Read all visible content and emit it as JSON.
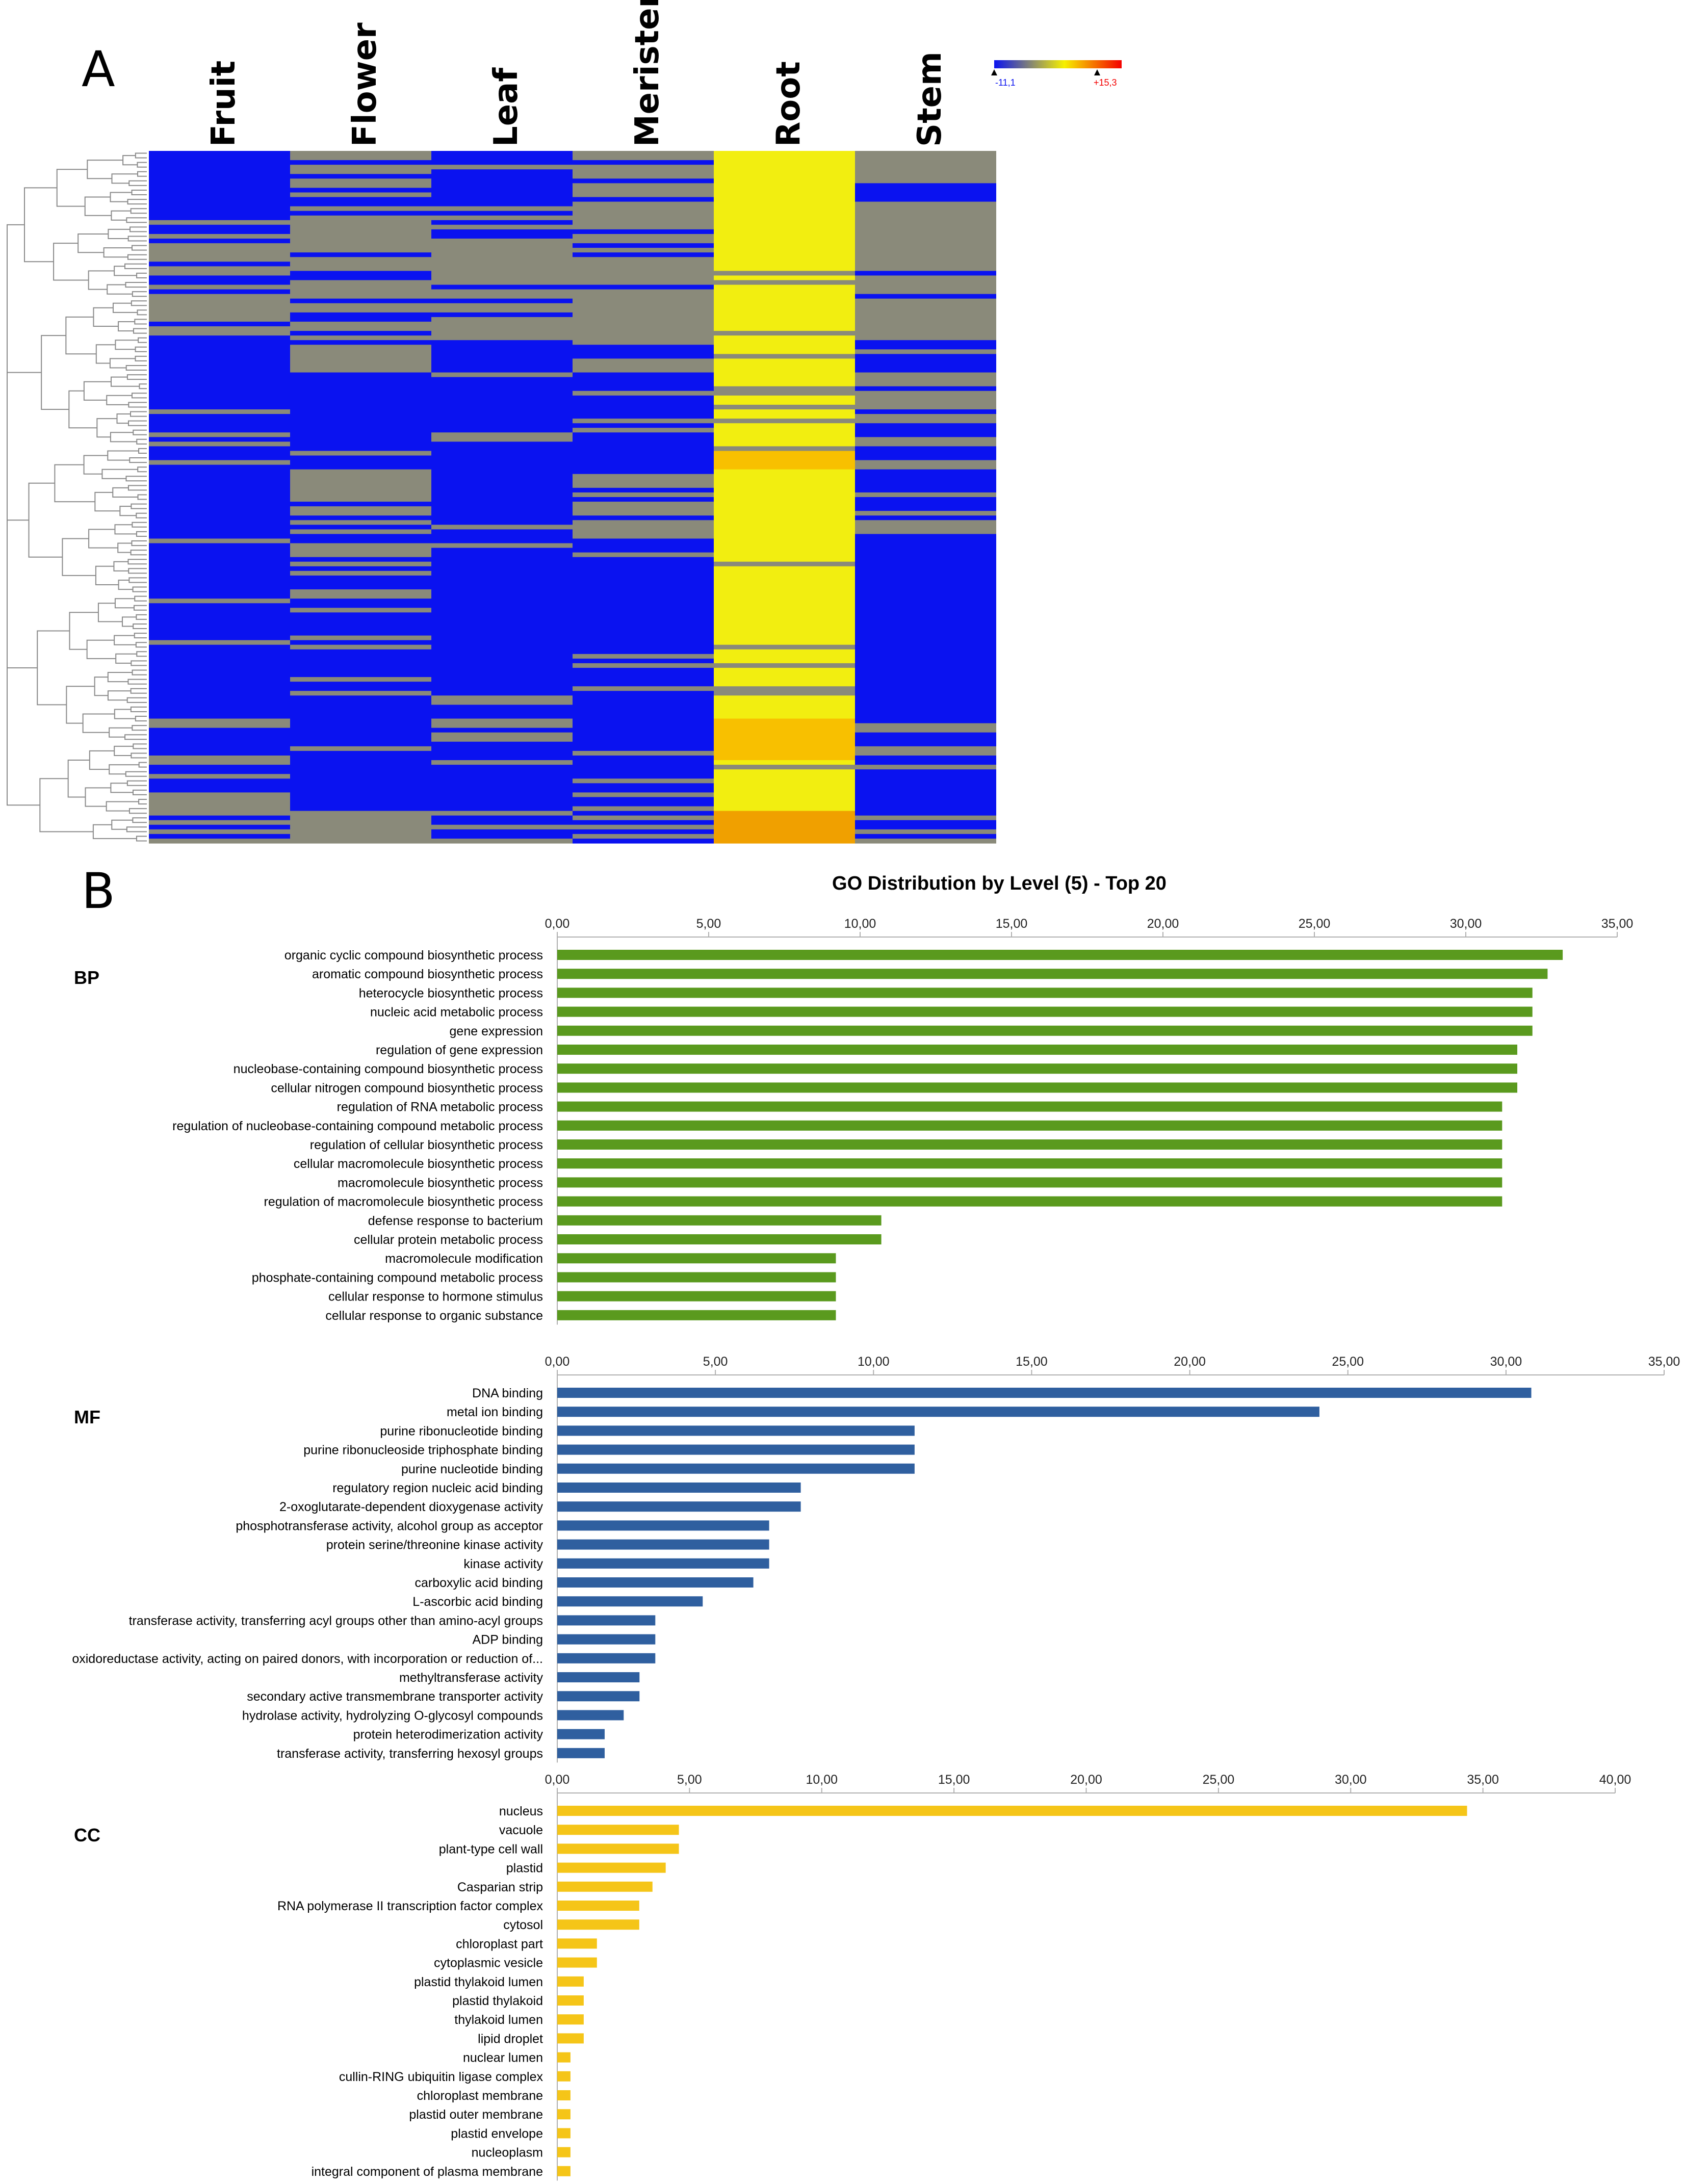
{
  "panels": {
    "a_letter": "A",
    "b_letter": "B"
  },
  "heatmap": {
    "columns": [
      "Fruit",
      "Flower",
      "Leaf",
      "Meristem",
      "Root",
      "Stem"
    ],
    "scale": {
      "min_label": "-11,1",
      "max_label": "+15,3",
      "min_color": "#0a12f0",
      "mid_color": "#f6f000",
      "max_color": "#f40000"
    }
  },
  "chart_title": "GO Distribution by Level (5) - Top 20",
  "chart_data": [
    {
      "type": "bar",
      "orientation": "horizontal",
      "name": "BP",
      "color": "#5a9a1e",
      "xlim": [
        0,
        35
      ],
      "ticks": [
        "0,00",
        "5,00",
        "10,00",
        "15,00",
        "20,00",
        "25,00",
        "30,00",
        "35,00"
      ],
      "categories": [
        "organic cyclic compound biosynthetic process",
        "aromatic compound biosynthetic process",
        "heterocycle biosynthetic process",
        "nucleic acid metabolic process",
        "gene expression",
        "regulation of gene expression",
        "nucleobase-containing compound biosynthetic process",
        "cellular nitrogen compound biosynthetic process",
        "regulation of RNA metabolic process",
        "regulation of nucleobase-containing compound metabolic process",
        "regulation of cellular biosynthetic process",
        "cellular macromolecule biosynthetic process",
        "macromolecule biosynthetic process",
        "regulation of macromolecule biosynthetic process",
        "defense response to bacterium",
        "cellular protein metabolic process",
        "macromolecule modification",
        "phosphate-containing compound metabolic process",
        "cellular response to hormone stimulus",
        "cellular response to organic substance"
      ],
      "values": [
        33.2,
        32.7,
        32.2,
        32.2,
        32.2,
        31.7,
        31.7,
        31.7,
        31.2,
        31.2,
        31.2,
        31.2,
        31.2,
        31.2,
        10.7,
        10.7,
        9.2,
        9.2,
        9.2,
        9.2
      ]
    },
    {
      "type": "bar",
      "orientation": "horizontal",
      "name": "MF",
      "color": "#2f5f9f",
      "xlim": [
        0,
        35
      ],
      "ticks": [
        "0,00",
        "5,00",
        "10,00",
        "15,00",
        "20,00",
        "25,00",
        "30,00",
        "35,00"
      ],
      "categories": [
        "DNA binding",
        "metal ion binding",
        "purine ribonucleotide binding",
        "purine ribonucleoside triphosphate binding",
        "purine nucleotide binding",
        "regulatory region nucleic acid binding",
        "2-oxoglutarate-dependent dioxygenase activity",
        "phosphotransferase activity, alcohol group as acceptor",
        "protein serine/threonine kinase activity",
        "kinase activity",
        "carboxylic acid binding",
        "L-ascorbic acid binding",
        "transferase activity, transferring acyl groups other than amino-acyl groups",
        "ADP binding",
        "oxidoreductase activity, acting on paired donors, with incorporation or reduction of...",
        "methyltransferase activity",
        "secondary active transmembrane transporter activity",
        "hydrolase activity, hydrolyzing O-glycosyl compounds",
        "protein heterodimerization activity",
        "transferase activity, transferring hexosyl groups"
      ],
      "values": [
        30.8,
        24.1,
        11.3,
        11.3,
        11.3,
        7.7,
        7.7,
        6.7,
        6.7,
        6.7,
        6.2,
        4.6,
        3.1,
        3.1,
        3.1,
        2.6,
        2.6,
        2.1,
        1.5,
        1.5
      ]
    },
    {
      "type": "bar",
      "orientation": "horizontal",
      "name": "CC",
      "color": "#f5c518",
      "xlim": [
        0,
        40
      ],
      "ticks": [
        "0,00",
        "5,00",
        "10,00",
        "15,00",
        "20,00",
        "25,00",
        "30,00",
        "35,00",
        "40,00"
      ],
      "categories": [
        "nucleus",
        "vacuole",
        "plant-type cell wall",
        "plastid",
        "Casparian strip",
        "RNA polymerase II transcription factor complex",
        "cytosol",
        "chloroplast part",
        "cytoplasmic vesicle",
        "plastid thylakoid lumen",
        "plastid thylakoid",
        "thylakoid lumen",
        "lipid droplet",
        "nuclear lumen",
        "cullin-RING ubiquitin ligase complex",
        "chloroplast membrane",
        "plastid outer membrane",
        "plastid envelope",
        "nucleoplasm",
        "integral component of plasma membrane"
      ],
      "values": [
        34.4,
        4.6,
        4.6,
        4.1,
        3.6,
        3.1,
        3.1,
        1.5,
        1.5,
        1.0,
        1.0,
        1.0,
        1.0,
        0.5,
        0.5,
        0.5,
        0.5,
        0.5,
        0.5,
        0.5
      ]
    }
  ]
}
